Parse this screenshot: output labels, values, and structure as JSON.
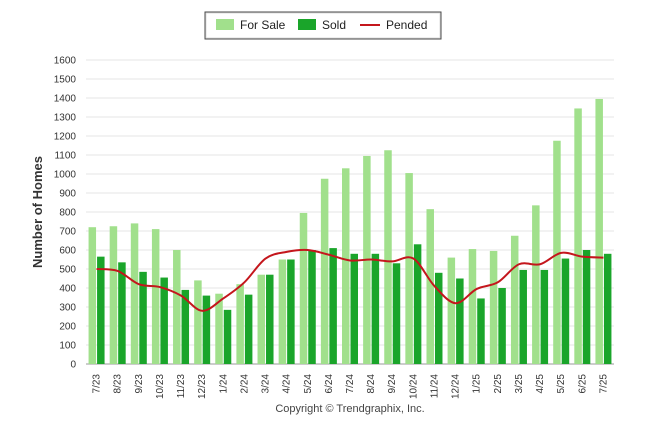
{
  "chart_data": {
    "type": "bar",
    "ylabel": "Number of Homes",
    "ylim": [
      0,
      1600
    ],
    "yticks": [
      0,
      100,
      200,
      300,
      400,
      500,
      600,
      700,
      800,
      900,
      1000,
      1100,
      1200,
      1300,
      1400,
      1500,
      1600
    ],
    "categories": [
      "7/23",
      "8/23",
      "9/23",
      "10/23",
      "11/23",
      "12/23",
      "1/24",
      "2/24",
      "3/24",
      "4/24",
      "5/24",
      "6/24",
      "7/24",
      "8/24",
      "9/24",
      "10/24",
      "11/24",
      "12/24",
      "1/25",
      "2/25",
      "3/25",
      "4/25",
      "5/25",
      "6/25",
      "7/25"
    ],
    "series": [
      {
        "name": "For Sale",
        "type": "bar",
        "color": "#a1e08c",
        "values": [
          720,
          725,
          740,
          710,
          600,
          440,
          370,
          420,
          470,
          550,
          795,
          975,
          1030,
          1095,
          1125,
          1005,
          815,
          560,
          605,
          595,
          675,
          835,
          1175,
          1345,
          1395
        ]
      },
      {
        "name": "Sold",
        "type": "bar",
        "color": "#1aa52a",
        "values": [
          565,
          535,
          485,
          455,
          390,
          360,
          285,
          365,
          470,
          550,
          600,
          610,
          580,
          580,
          530,
          630,
          480,
          450,
          345,
          400,
          495,
          495,
          555,
          600,
          580
        ]
      },
      {
        "name": "Pended",
        "type": "line",
        "color": "#c4161c",
        "values": [
          500,
          490,
          420,
          405,
          360,
          280,
          345,
          430,
          555,
          590,
          600,
          575,
          545,
          550,
          540,
          555,
          410,
          320,
          395,
          430,
          525,
          525,
          585,
          565,
          560
        ]
      }
    ],
    "legend_position": "top-center",
    "grid": true
  },
  "footer": {
    "copyright": "Copyright © Trendgraphix, Inc."
  }
}
